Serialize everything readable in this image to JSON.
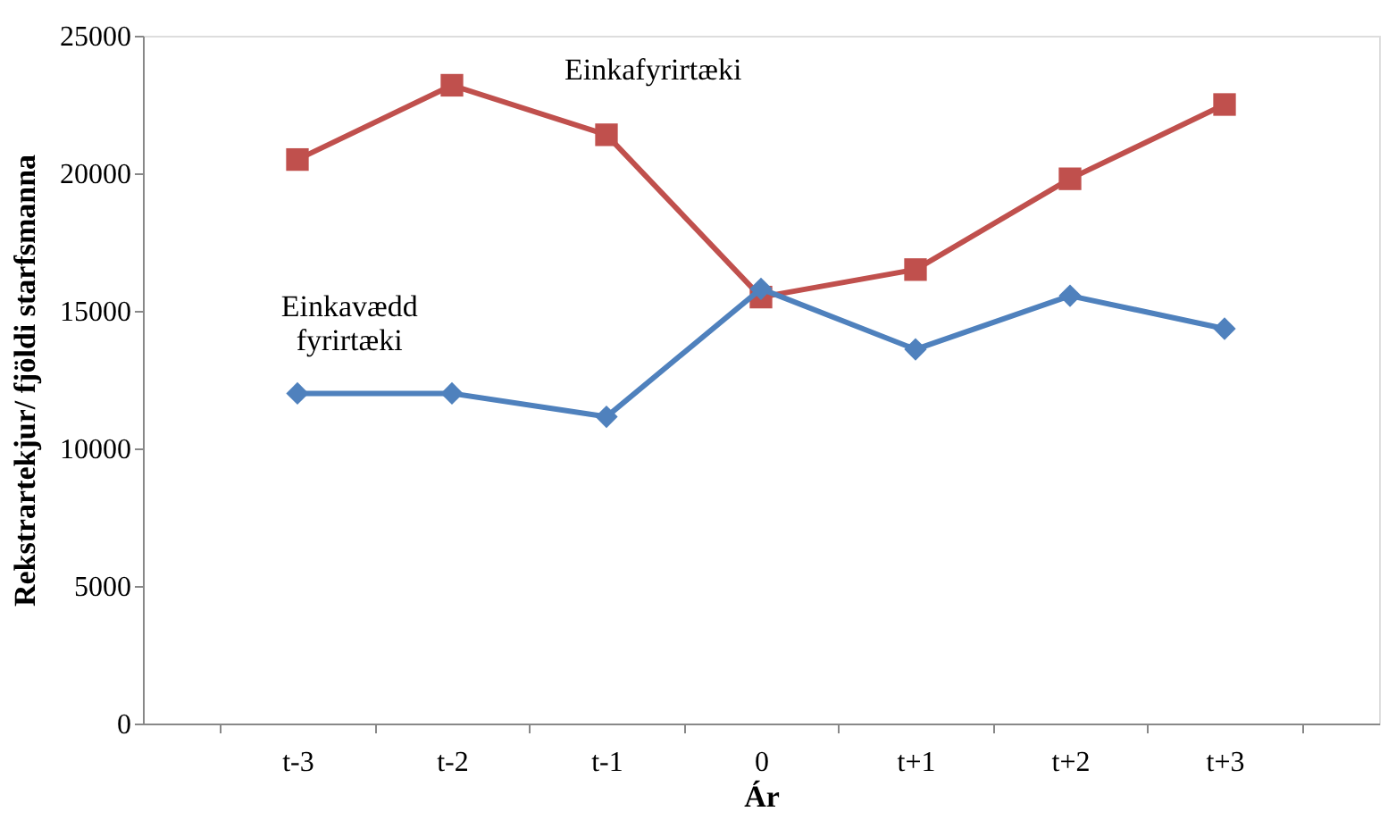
{
  "chart_data": {
    "type": "line",
    "xlabel": "Ár",
    "ylabel": "Rekstrartekjur/ fjöldi starfsmanna",
    "categories": [
      "t-3",
      "t-2",
      "t-1",
      "0",
      "t+1",
      "t+2",
      "t+3"
    ],
    "series": [
      {
        "name": "Einkafyrirtæki",
        "color": "#c0504d",
        "marker": "square",
        "values": [
          20500,
          23200,
          21400,
          15500,
          16500,
          19800,
          22500
        ]
      },
      {
        "name": "Einkavædd fyrirtæki",
        "color": "#4f81bd",
        "marker": "diamond",
        "values": [
          12000,
          12000,
          11150,
          15800,
          13600,
          15550,
          14350
        ]
      }
    ],
    "ylim": [
      0,
      25000
    ],
    "yticks": [
      0,
      5000,
      10000,
      15000,
      20000,
      25000
    ]
  }
}
